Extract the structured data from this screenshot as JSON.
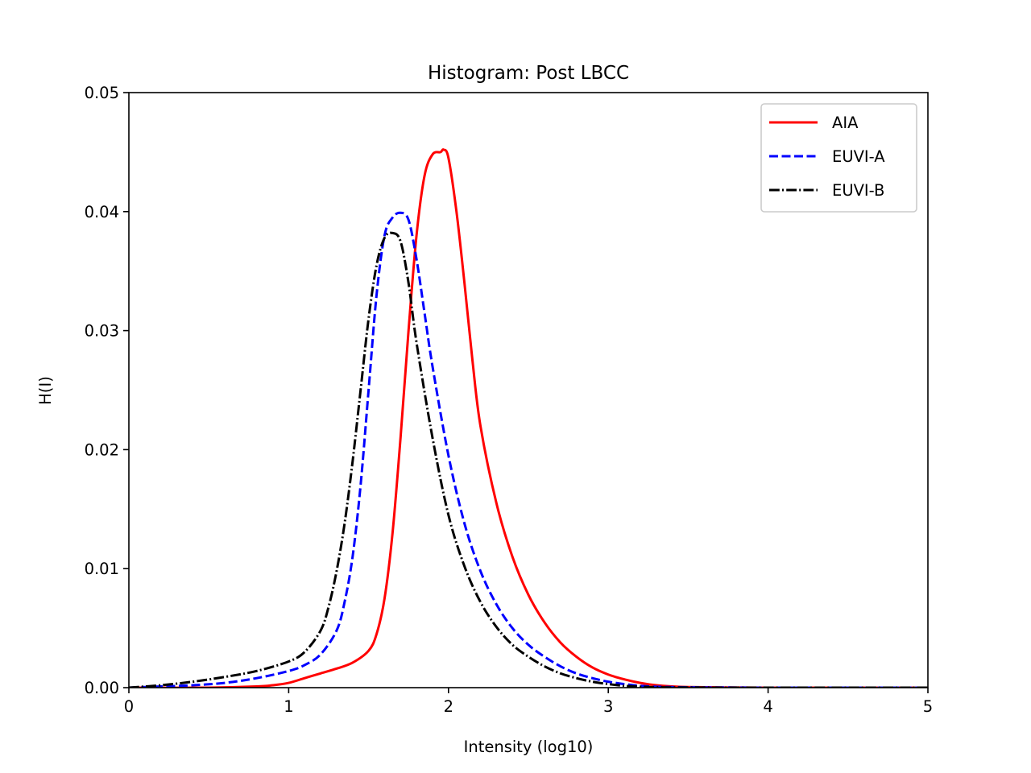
{
  "chart_data": {
    "type": "line",
    "title": "Histogram: Post LBCC",
    "xlabel": "Intensity (log10)",
    "ylabel": "H(I)",
    "xlim": [
      0,
      5
    ],
    "ylim": [
      0,
      0.05
    ],
    "xticks": [
      0,
      1,
      2,
      3,
      4,
      5
    ],
    "xtick_labels": [
      "0",
      "1",
      "2",
      "3",
      "4",
      "5"
    ],
    "yticks": [
      0,
      0.01,
      0.02,
      0.03,
      0.04,
      0.05
    ],
    "ytick_labels": [
      "0.00",
      "0.01",
      "0.02",
      "0.03",
      "0.04",
      "0.05"
    ],
    "grid": false,
    "legend_position": "upper right",
    "series": [
      {
        "name": "AIA",
        "color": "#ff0000",
        "linestyle": "solid",
        "x": [
          0,
          0.5,
          0.8,
          0.9,
          1.0,
          1.1,
          1.2,
          1.3,
          1.4,
          1.5,
          1.55,
          1.6,
          1.65,
          1.7,
          1.75,
          1.8,
          1.85,
          1.9,
          1.95,
          1.97,
          2.0,
          2.05,
          2.1,
          2.15,
          2.2,
          2.3,
          2.4,
          2.5,
          2.6,
          2.7,
          2.8,
          2.9,
          3.0,
          3.1,
          3.2,
          3.3,
          3.4,
          3.5,
          3.7,
          4.0,
          4.5,
          5.0
        ],
        "y": [
          0,
          0,
          0.0001,
          0.0002,
          0.0004,
          0.0008,
          0.0012,
          0.0016,
          0.0021,
          0.0031,
          0.0045,
          0.0075,
          0.013,
          0.021,
          0.03,
          0.038,
          0.043,
          0.0448,
          0.045,
          0.0452,
          0.0445,
          0.04,
          0.034,
          0.0275,
          0.022,
          0.0155,
          0.011,
          0.0078,
          0.0055,
          0.0038,
          0.0026,
          0.0017,
          0.0011,
          0.0007,
          0.0004,
          0.0002,
          0.0001,
          5e-05,
          2e-05,
          0,
          0,
          0
        ]
      },
      {
        "name": "EUVI-A",
        "color": "#0000ff",
        "linestyle": "dashed",
        "x": [
          0,
          0.2,
          0.4,
          0.6,
          0.8,
          1.0,
          1.1,
          1.2,
          1.3,
          1.35,
          1.4,
          1.45,
          1.5,
          1.55,
          1.6,
          1.65,
          1.7,
          1.75,
          1.8,
          1.85,
          1.9,
          2.0,
          2.1,
          2.2,
          2.3,
          2.4,
          2.5,
          2.6,
          2.7,
          2.8,
          2.9,
          3.0,
          3.1,
          3.2,
          3.3,
          3.5,
          3.8,
          4.0,
          5.0
        ],
        "y": [
          0,
          0.0001,
          0.0002,
          0.0004,
          0.0008,
          0.0014,
          0.0019,
          0.0028,
          0.0048,
          0.0072,
          0.011,
          0.017,
          0.025,
          0.033,
          0.038,
          0.0395,
          0.0399,
          0.0393,
          0.036,
          0.0315,
          0.027,
          0.0195,
          0.0138,
          0.0098,
          0.007,
          0.005,
          0.0036,
          0.0026,
          0.0018,
          0.0012,
          0.0008,
          0.0005,
          0.0003,
          0.00015,
          8e-05,
          3e-05,
          1e-05,
          0,
          0
        ]
      },
      {
        "name": "EUVI-B",
        "color": "#000000",
        "linestyle": "dashdot",
        "x": [
          0,
          0.2,
          0.4,
          0.6,
          0.8,
          1.0,
          1.1,
          1.2,
          1.25,
          1.3,
          1.35,
          1.4,
          1.45,
          1.5,
          1.55,
          1.6,
          1.65,
          1.7,
          1.75,
          1.8,
          1.9,
          2.0,
          2.1,
          2.2,
          2.3,
          2.4,
          2.5,
          2.6,
          2.7,
          2.8,
          2.9,
          3.0,
          3.1,
          3.2,
          3.3,
          3.5,
          3.8,
          4.0,
          5.0
        ],
        "y": [
          0,
          0.0002,
          0.0005,
          0.0009,
          0.0014,
          0.0022,
          0.003,
          0.0048,
          0.0068,
          0.0098,
          0.0138,
          0.019,
          0.025,
          0.031,
          0.0355,
          0.0378,
          0.0382,
          0.0375,
          0.034,
          0.029,
          0.021,
          0.0145,
          0.0102,
          0.0072,
          0.0051,
          0.0036,
          0.0026,
          0.0018,
          0.0012,
          0.0008,
          0.0005,
          0.0003,
          0.00015,
          8e-05,
          3e-05,
          1e-05,
          0,
          0,
          0
        ]
      }
    ]
  }
}
